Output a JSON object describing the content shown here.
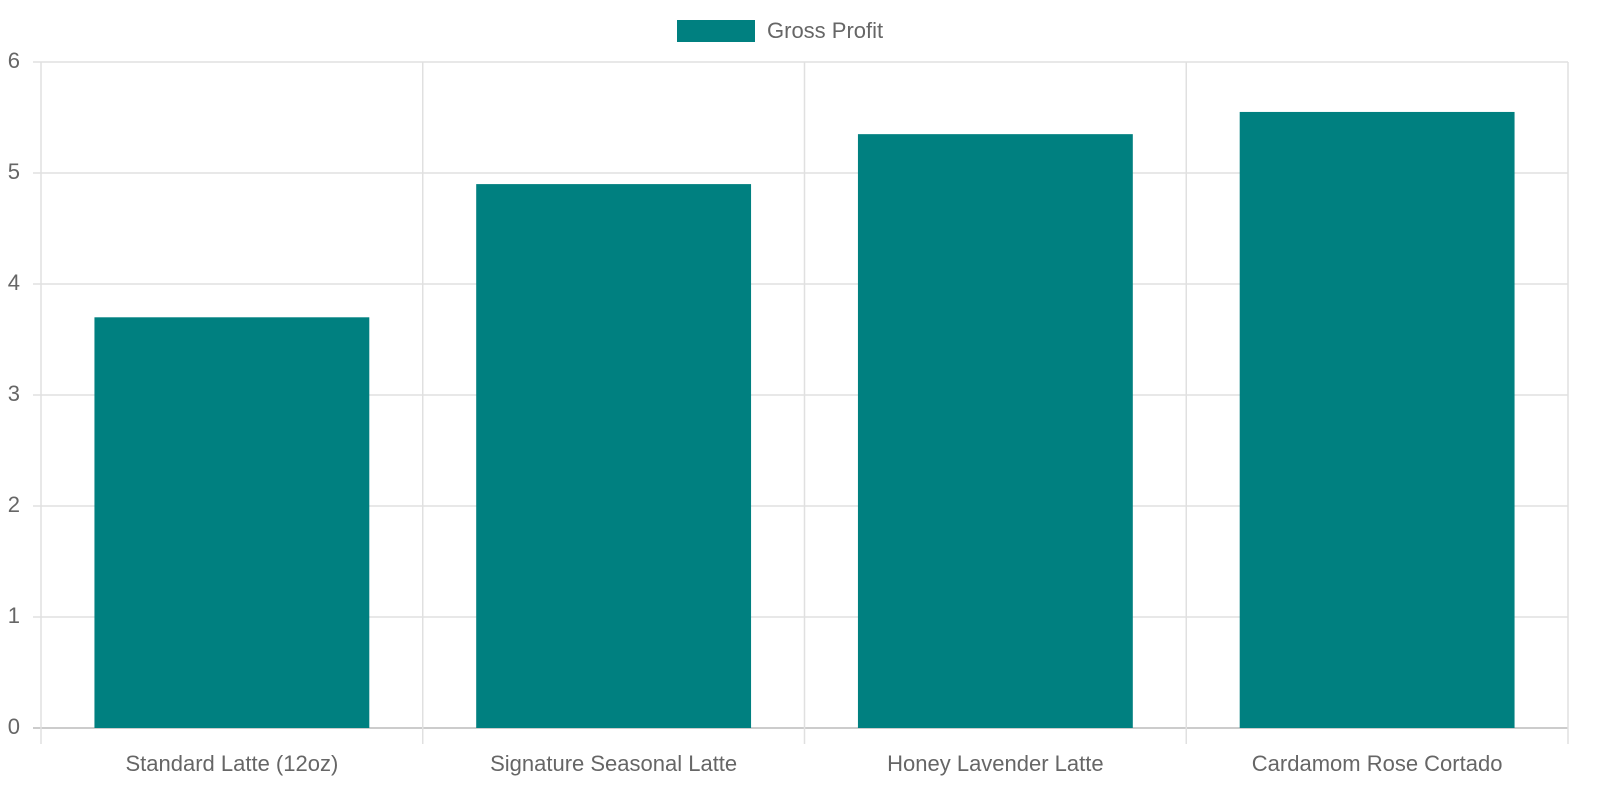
{
  "chart_data": {
    "type": "bar",
    "categories": [
      "Standard Latte (12oz)",
      "Signature Seasonal Latte",
      "Honey Lavender Latte",
      "Cardamom Rose Cortado"
    ],
    "series": [
      {
        "name": "Gross Profit",
        "color": "#008080",
        "values": [
          3.7,
          4.9,
          5.35,
          5.55
        ]
      }
    ],
    "ylim": [
      0,
      6
    ],
    "yticks": [
      0,
      1,
      2,
      3,
      4,
      5,
      6
    ],
    "grid": true,
    "legend": "top"
  }
}
